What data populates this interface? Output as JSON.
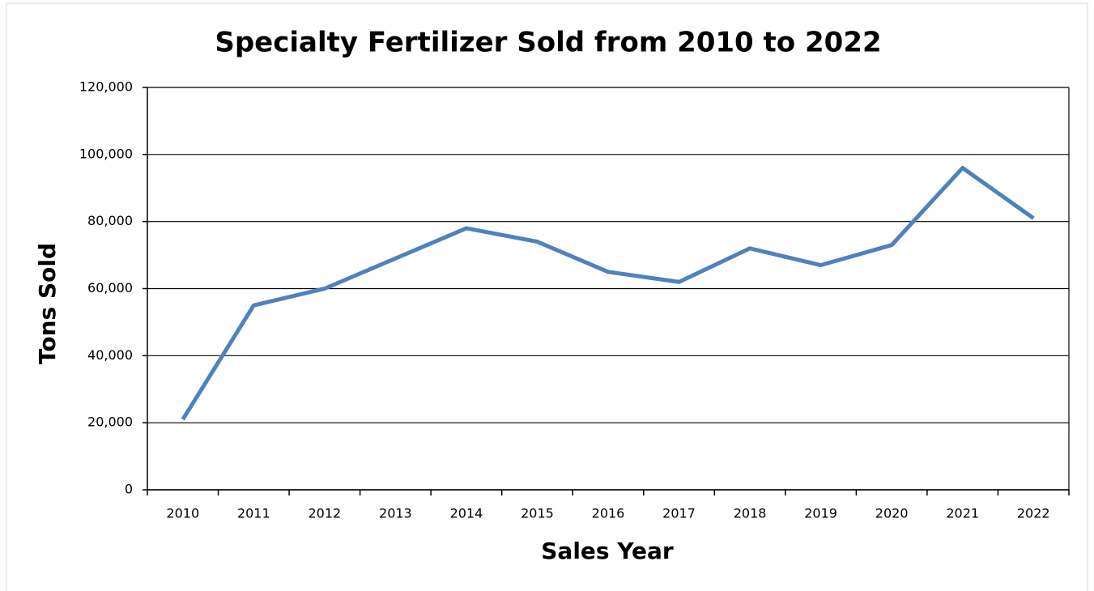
{
  "chart_data": {
    "type": "line",
    "title": "Specialty Fertilizer Sold from 2010 to 2022",
    "x_label": "Sales Year",
    "y_label": "Tons Sold",
    "categories": [
      "2010",
      "2011",
      "2012",
      "2013",
      "2014",
      "2015",
      "2016",
      "2017",
      "2018",
      "2019",
      "2020",
      "2021",
      "2022"
    ],
    "values": [
      21000,
      55000,
      60000,
      69000,
      78000,
      74000,
      65000,
      62000,
      72000,
      67000,
      73000,
      96000,
      81000
    ],
    "color": "#4f81bd",
    "ylim": [
      0,
      120000
    ],
    "yticks": [
      0,
      {
        "value": 20000,
        "label": "20,000"
      },
      {
        "value": 40000,
        "label": "40,000"
      },
      {
        "value": 60000,
        "label": "60,000"
      },
      {
        "value": 80000,
        "label": "80,000"
      },
      {
        "value": 100000,
        "label": "100,000"
      },
      {
        "value": 120000,
        "label": "120,000"
      }
    ],
    "grid": true
  }
}
